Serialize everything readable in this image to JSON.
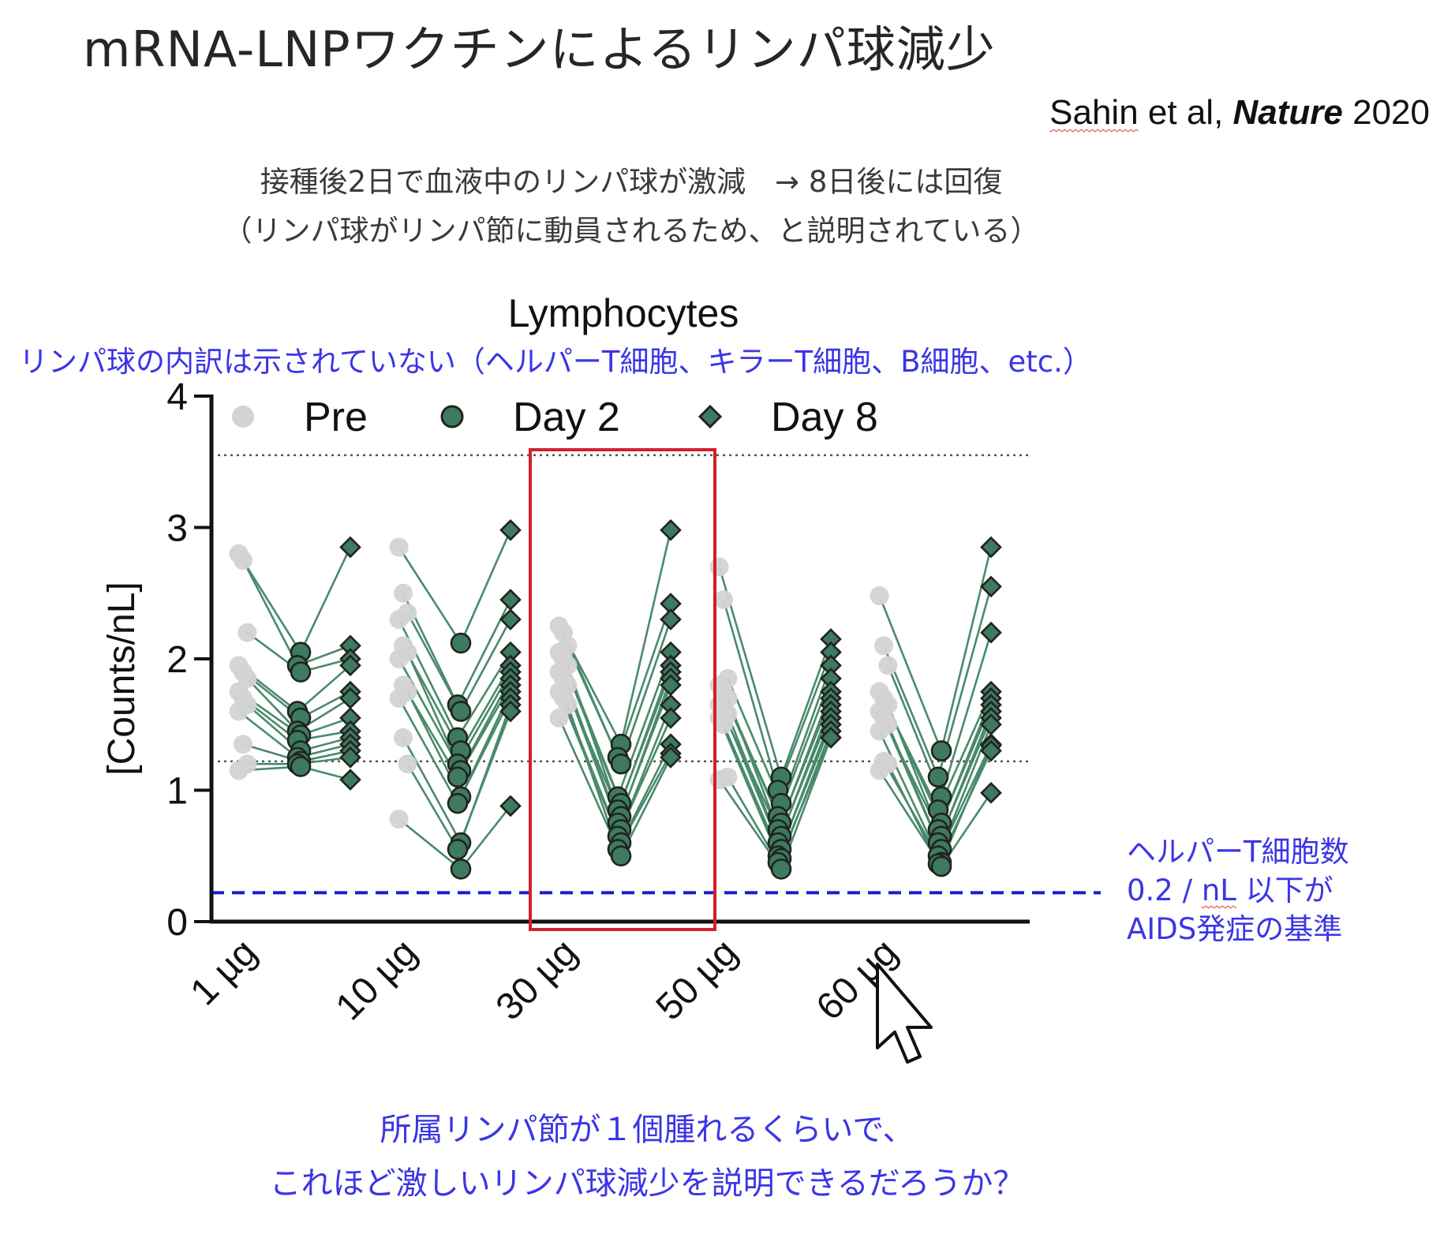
{
  "slide": {
    "title": "mRNA-LNPワクチンによるリンパ球減少",
    "citation_authors": "Sahin",
    "citation_middle": " et al, ",
    "citation_journal": "Nature",
    "citation_year": " 2020",
    "subtitle_line1": "接種後2日で血液中のリンパ球が激減　→ 8日後には回復",
    "subtitle_line2": "（リンパ球がリンパ節に動員されるため、と説明されている）",
    "note_top": "リンパ球の内訳は示されていない（ヘルパーT細胞、キラーT細胞、B細胞、etc.）",
    "note_right_line1": "ヘルパーT細胞数",
    "note_right_line2a": "0.2 / ",
    "note_right_line2b": "nL",
    "note_right_line2c": " 以下が",
    "note_right_line3": "AIDS発症の基準",
    "note_bottom_line1": "所属リンパ節が１個腫れるくらいで、",
    "note_bottom_line2": "これほど激しいリンパ球減少を説明できるだろうか？"
  },
  "colors": {
    "pre": "#d3d3d3",
    "day": "#3d7a5e",
    "line": "#4a8a6c",
    "edge": "#222222",
    "ref_line": "#555555",
    "aids_line": "#1a1ad0",
    "highlight": "#d0202a"
  },
  "chart_data": {
    "type": "scatter",
    "title": "Lymphocytes",
    "ylabel": "[Counts/nL]",
    "xlabel": "",
    "ylim": [
      0,
      4
    ],
    "yticks": [
      0,
      1,
      2,
      3,
      4
    ],
    "categories": [
      "1 µg",
      "10 µg",
      "30 µg",
      "50 µg",
      "60 µg"
    ],
    "legend": [
      "Pre",
      "Day 2",
      "Day 8"
    ],
    "legend_position": "top",
    "reference_lines": [
      {
        "y": 3.55,
        "style": "dotted"
      },
      {
        "y": 1.22,
        "style": "dotted"
      },
      {
        "y": 0.22,
        "style": "dashed-blue"
      }
    ],
    "highlight_category": "30 µg",
    "groups": [
      {
        "dose": "1 µg",
        "pre": [
          2.8,
          2.75,
          2.2,
          1.95,
          1.9,
          1.85,
          1.75,
          1.7,
          1.65,
          1.6,
          1.35,
          1.2,
          1.15
        ],
        "day2": [
          2.05,
          1.95,
          1.9,
          1.6,
          1.55,
          1.45,
          1.42,
          1.38,
          1.3,
          1.25,
          1.22,
          1.2,
          1.18
        ],
        "day8": [
          2.85,
          2.1,
          2.0,
          1.95,
          1.75,
          1.7,
          1.55,
          1.45,
          1.4,
          1.35,
          1.3,
          1.25,
          1.08
        ]
      },
      {
        "dose": "10 µg",
        "pre": [
          2.85,
          2.5,
          2.35,
          2.3,
          2.1,
          2.05,
          2.0,
          1.8,
          1.75,
          1.7,
          1.4,
          1.2,
          0.78
        ],
        "day2": [
          2.12,
          1.65,
          1.6,
          1.4,
          1.3,
          1.2,
          1.15,
          1.1,
          0.95,
          0.9,
          0.6,
          0.55,
          0.4
        ],
        "day8": [
          2.98,
          2.45,
          2.3,
          2.05,
          1.95,
          1.9,
          1.85,
          1.8,
          1.75,
          1.7,
          1.65,
          1.6,
          0.88
        ]
      },
      {
        "dose": "30 µg",
        "pre": [
          2.25,
          2.2,
          2.1,
          2.05,
          2.0,
          1.95,
          1.9,
          1.85,
          1.8,
          1.75,
          1.7,
          1.65,
          1.55
        ],
        "day2": [
          1.35,
          1.25,
          1.2,
          0.95,
          0.9,
          0.85,
          0.8,
          0.75,
          0.7,
          0.65,
          0.6,
          0.55,
          0.5
        ],
        "day8": [
          2.98,
          2.42,
          2.3,
          2.05,
          1.95,
          1.9,
          1.85,
          1.8,
          1.65,
          1.55,
          1.35,
          1.28,
          1.25
        ]
      },
      {
        "dose": "50 µg",
        "pre": [
          2.7,
          2.45,
          1.85,
          1.8,
          1.75,
          1.7,
          1.65,
          1.6,
          1.58,
          1.55,
          1.5,
          1.1,
          1.08
        ],
        "day2": [
          1.1,
          1.0,
          0.9,
          0.8,
          0.75,
          0.7,
          0.65,
          0.6,
          0.55,
          0.5,
          0.48,
          0.45,
          0.4
        ],
        "day8": [
          2.15,
          2.05,
          1.95,
          1.85,
          1.75,
          1.7,
          1.65,
          1.6,
          1.55,
          1.5,
          1.45,
          1.4,
          1.4
        ]
      },
      {
        "dose": "60 µg",
        "pre": [
          2.48,
          2.1,
          1.95,
          1.75,
          1.7,
          1.65,
          1.6,
          1.55,
          1.5,
          1.45,
          1.22,
          1.2,
          1.15
        ],
        "day2": [
          1.3,
          1.1,
          0.95,
          0.85,
          0.75,
          0.7,
          0.65,
          0.6,
          0.55,
          0.5,
          0.45,
          0.44,
          0.42
        ],
        "day8": [
          2.85,
          2.55,
          2.2,
          1.75,
          1.7,
          1.65,
          1.6,
          1.55,
          1.5,
          1.35,
          1.34,
          1.3,
          0.98
        ]
      }
    ]
  }
}
